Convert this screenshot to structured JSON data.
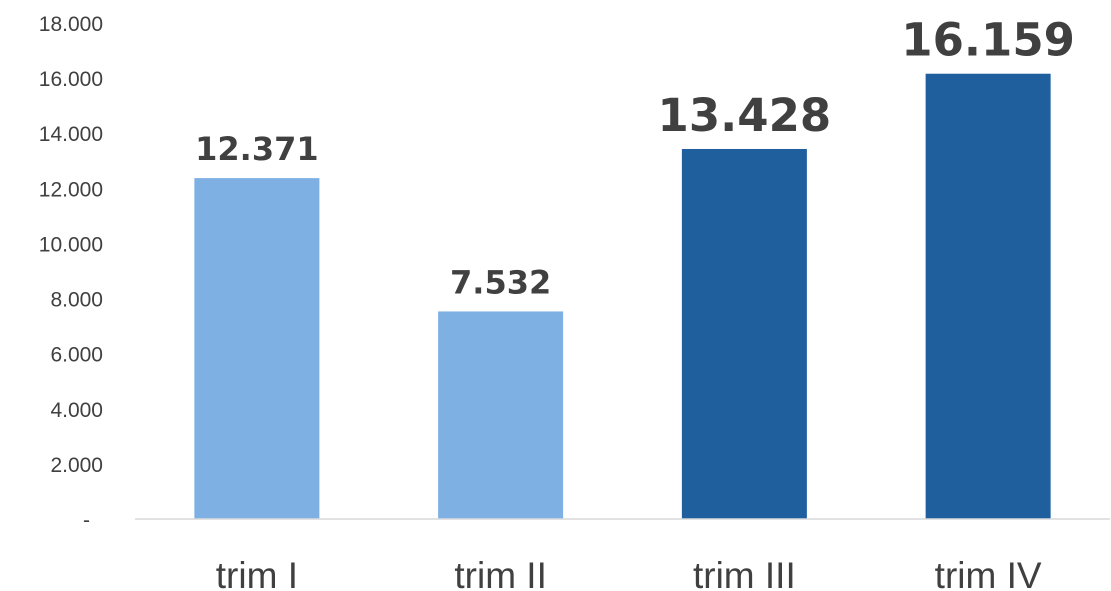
{
  "chart_data": {
    "type": "bar",
    "categories": [
      "trim I",
      "trim II",
      "trim III",
      "trim IV"
    ],
    "values": [
      12371,
      7532,
      13428,
      16159
    ],
    "value_labels": [
      "12.371",
      "7.532",
      "13.428",
      "16.159"
    ],
    "bar_colors": [
      "#7EB0E4",
      "#7EB0E4",
      "#1F5F9E",
      "#1F5F9E"
    ],
    "ylim": [
      0,
      18000
    ],
    "y_ticks": [
      0,
      2000,
      4000,
      6000,
      8000,
      10000,
      12000,
      14000,
      16000,
      18000
    ],
    "y_tick_labels": [
      "-",
      "2.000",
      "4.000",
      "6.000",
      "8.000",
      "10.000",
      "12.000",
      "14.000",
      "16.000",
      "18.000"
    ],
    "title": "",
    "xlabel": "",
    "ylabel": "",
    "grid": false,
    "legend": "none"
  }
}
